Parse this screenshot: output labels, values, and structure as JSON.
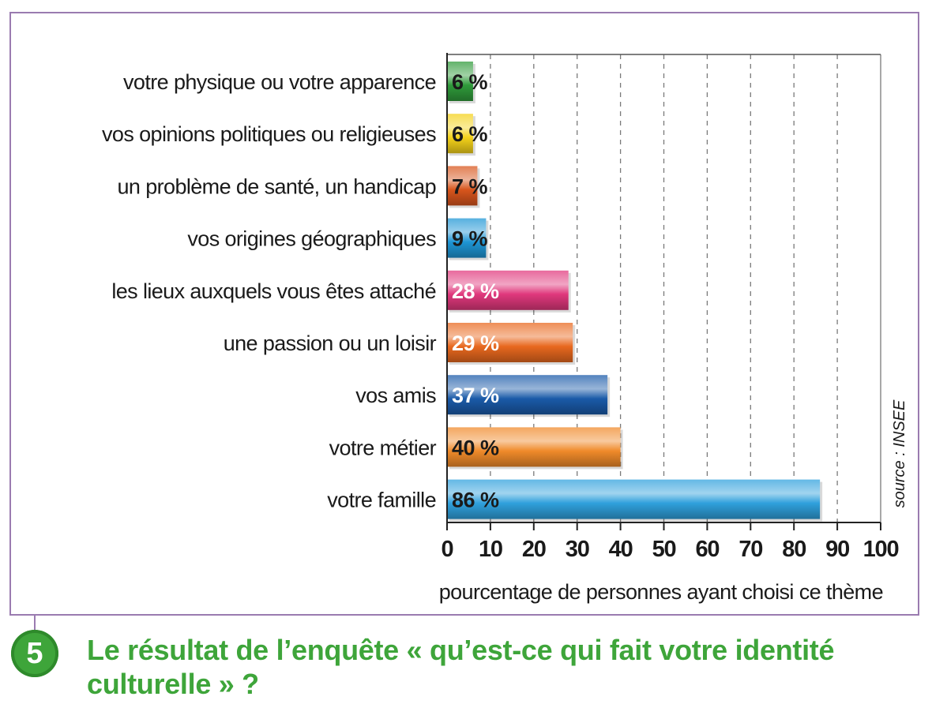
{
  "chart_data": {
    "type": "bar",
    "orientation": "horizontal",
    "categories": [
      "votre physique ou votre apparence",
      "vos opinions politiques ou religieuses",
      "un problème de santé, un handicap",
      "vos origines géographiques",
      "les lieux auxquels vous êtes attaché",
      "une passion ou un loisir",
      "vos amis",
      "votre métier",
      "votre famille"
    ],
    "values": [
      6,
      6,
      7,
      9,
      28,
      29,
      37,
      40,
      86
    ],
    "value_labels": [
      "6 %",
      "6 %",
      "7 %",
      "9 %",
      "28 %",
      "29 %",
      "37 %",
      "40 %",
      "86 %"
    ],
    "bar_colors": [
      "#2f9a3a",
      "#f4d21a",
      "#d8551c",
      "#1e95d4",
      "#e0387c",
      "#e8681e",
      "#1a5aa8",
      "#f08a2a",
      "#2fa0dc"
    ],
    "label_colors": [
      "#1a1a1a",
      "#1a1a1a",
      "#1a1a1a",
      "#1a1a1a",
      "#ffffff",
      "#ffffff",
      "#ffffff",
      "#1a1a1a",
      "#1a1a1a"
    ],
    "xlim": [
      0,
      100
    ],
    "xticks": [
      "0",
      "10",
      "20",
      "30",
      "40",
      "50",
      "60",
      "70",
      "80",
      "90",
      "100"
    ],
    "xlabel": "pourcentage de personnes ayant choisi ce thème",
    "grid": "vertical dashed",
    "source": "source : INSEE"
  },
  "caption": {
    "number": "5",
    "title": "Le résultat de l’enquête « qu’est-ce qui fait votre identité culturelle » ?"
  },
  "colors": {
    "frame": "#9a7bb0",
    "caption_green": "#3ea53a"
  }
}
